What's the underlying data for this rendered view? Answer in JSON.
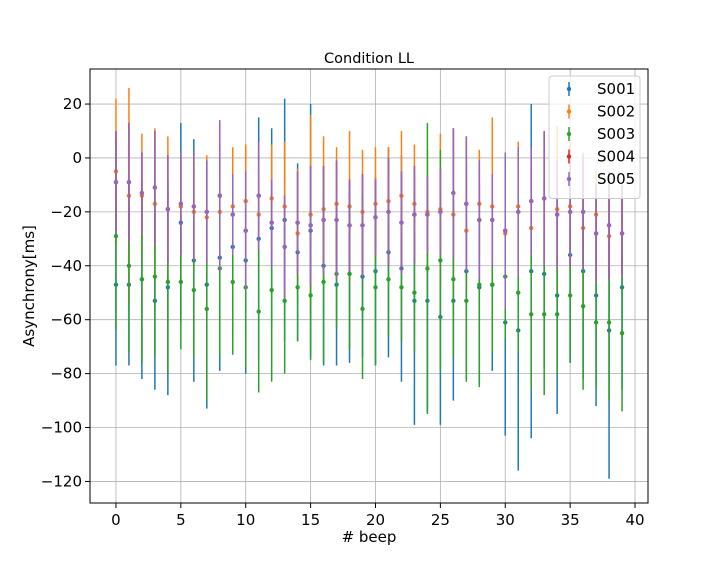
{
  "chart_data": {
    "type": "scatter",
    "title": "Condition LL",
    "xlabel": "# beep",
    "ylabel": "Asynchrony[ms]",
    "xlim": [
      -2,
      41
    ],
    "ylim": [
      -128,
      33
    ],
    "xticks": [
      0,
      5,
      10,
      15,
      20,
      25,
      30,
      35,
      40
    ],
    "yticks": [
      -120,
      -100,
      -80,
      -60,
      -40,
      -20,
      0,
      20
    ],
    "grid": true,
    "legend_position": "top-right",
    "x": [
      0,
      1,
      2,
      3,
      4,
      5,
      6,
      7,
      8,
      9,
      10,
      11,
      12,
      13,
      14,
      15,
      16,
      17,
      18,
      19,
      20,
      21,
      22,
      23,
      24,
      25,
      26,
      27,
      28,
      29,
      30,
      31,
      32,
      33,
      34,
      35,
      36,
      37,
      38,
      39
    ],
    "series": [
      {
        "name": "S001",
        "color": "#1f77b4",
        "values": [
          -47,
          -47,
          -45,
          -53,
          -48,
          -24,
          -38,
          -47,
          -37,
          -33,
          -38,
          -30,
          -26,
          -23,
          -35,
          -27,
          -40,
          -47,
          -43,
          -44,
          -42,
          -35,
          -41,
          -53,
          -53,
          -59,
          -53,
          -42,
          -48,
          -47,
          -61,
          -64,
          -42,
          -43,
          -51,
          -36,
          -42,
          -51,
          -64,
          -48
        ],
        "errors": [
          30,
          30,
          37,
          33,
          40,
          37,
          45,
          46,
          42,
          33,
          42,
          45,
          37,
          45,
          33,
          47,
          37,
          30,
          33,
          30,
          35,
          39,
          42,
          46,
          41,
          40,
          37,
          40,
          35,
          32,
          42,
          52,
          62,
          35,
          44,
          40,
          40,
          41,
          55,
          38
        ]
      },
      {
        "name": "S002",
        "color": "#ff7f0e",
        "values": [
          -5,
          -14,
          -14,
          -17,
          -19,
          -18,
          -20,
          -22,
          -20,
          -18,
          -16,
          -21,
          -15,
          -18,
          -28,
          -21,
          -19,
          -17,
          -18,
          -20,
          -17,
          -16,
          -14,
          -17,
          -20,
          -19,
          -21,
          -27,
          -17,
          -18,
          -28,
          -18,
          -26,
          -15,
          -19,
          -18,
          -26,
          -21,
          -29,
          -28
        ],
        "errors": [
          27,
          40,
          23,
          28,
          27,
          20,
          22,
          23,
          25,
          22,
          21,
          16,
          20,
          24,
          24,
          37,
          27,
          21,
          28,
          23,
          21,
          20,
          24,
          22,
          23,
          28,
          31,
          23,
          20,
          33,
          24,
          24,
          21,
          25,
          31,
          24,
          28,
          16,
          15,
          14
        ]
      },
      {
        "name": "S003",
        "color": "#2ca02c",
        "values": [
          -29,
          -40,
          -45,
          -44,
          -46,
          -46,
          -49,
          -56,
          -41,
          -46,
          -48,
          -57,
          -49,
          -53,
          -48,
          -51,
          -46,
          -43,
          -43,
          -56,
          -48,
          -45,
          -48,
          -50,
          -41,
          -38,
          -45,
          -53,
          -47,
          -47,
          -44,
          -50,
          -58,
          -58,
          -58,
          -51,
          -55,
          -61,
          -61,
          -65
        ],
        "errors": [
          35,
          32,
          31,
          29,
          34,
          25,
          25,
          34,
          33,
          27,
          30,
          30,
          34,
          27,
          20,
          24,
          30,
          20,
          28,
          26,
          29,
          21,
          20,
          22,
          54,
          41,
          29,
          30,
          38,
          25,
          23,
          22,
          28,
          30,
          22,
          25,
          31,
          24,
          29,
          29
        ]
      },
      {
        "name": "S004",
        "color": "#d62728",
        "values": [
          -9,
          -9,
          -13,
          -11,
          -19,
          -17,
          -18,
          -20,
          -14,
          -21,
          -27,
          -14,
          -24,
          -33,
          -24,
          -25,
          -23,
          -23,
          -25,
          -25,
          -22,
          -20,
          -24,
          -21,
          -21,
          -20,
          -13,
          -17,
          -23,
          -23,
          -27,
          -20,
          -16,
          -15,
          -21,
          -20,
          -20,
          -28,
          -25,
          -28
        ],
        "errors": [
          19,
          22,
          15,
          21,
          20,
          19,
          20,
          19,
          28,
          15,
          22,
          20,
          16,
          19,
          19,
          22,
          20,
          22,
          17,
          19,
          14,
          20,
          19,
          18,
          14,
          16,
          24,
          25,
          22,
          17,
          29,
          24,
          20,
          25,
          20,
          20,
          21,
          18,
          20,
          16
        ]
      },
      {
        "name": "S005",
        "color": "#9467bd",
        "values": [
          -9,
          -9,
          -13,
          -11,
          -19,
          -17,
          -18,
          -20,
          -14,
          -21,
          -27,
          -14,
          -24,
          -33,
          -24,
          -25,
          -23,
          -23,
          -25,
          -25,
          -22,
          -20,
          -24,
          -21,
          -21,
          -20,
          -13,
          -17,
          -23,
          -23,
          -27,
          -20,
          -16,
          -15,
          -21,
          -20,
          -20,
          -28,
          -25,
          -28
        ],
        "errors": [
          19,
          22,
          15,
          21,
          20,
          19,
          20,
          19,
          28,
          15,
          22,
          20,
          16,
          19,
          19,
          22,
          20,
          22,
          17,
          19,
          14,
          20,
          19,
          18,
          14,
          16,
          24,
          25,
          22,
          17,
          29,
          24,
          20,
          25,
          20,
          20,
          21,
          18,
          20,
          16
        ]
      }
    ]
  }
}
